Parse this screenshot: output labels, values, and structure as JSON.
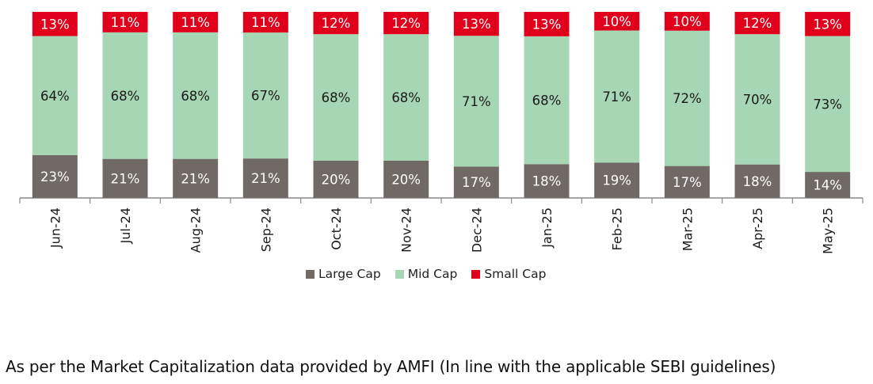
{
  "chart_data": {
    "type": "bar",
    "stacked": true,
    "percent": true,
    "categories": [
      "Jun-24",
      "Jul-24",
      "Aug-24",
      "Sep-24",
      "Oct-24",
      "Nov-24",
      "Dec-24",
      "Jan-25",
      "Feb-25",
      "Mar-25",
      "Apr-25",
      "May-25"
    ],
    "series": [
      {
        "name": "Large Cap",
        "color": "#706965",
        "values": [
          23,
          21,
          21,
          21,
          20,
          20,
          17,
          18,
          19,
          17,
          18,
          14
        ]
      },
      {
        "name": "Mid Cap",
        "color": "#a7d6b4",
        "values": [
          64,
          68,
          68,
          67,
          68,
          68,
          71,
          68,
          71,
          72,
          70,
          73
        ]
      },
      {
        "name": "Small Cap",
        "color": "#e0001b",
        "values": [
          13,
          11,
          11,
          11,
          12,
          12,
          13,
          13,
          10,
          10,
          12,
          13
        ]
      }
    ],
    "labels": [
      [
        "23%",
        "21%",
        "21%",
        "21%",
        "20%",
        "20%",
        "17%",
        "18%",
        "19%",
        "17%",
        "18%",
        "14%"
      ],
      [
        "64%",
        "68%",
        "68%",
        "67%",
        "68%",
        "68%",
        "71%",
        "68%",
        "71%",
        "72%",
        "70%",
        "73%"
      ],
      [
        "13%",
        "11%",
        "11%",
        "11%",
        "12%",
        "12%",
        "13%",
        "13%",
        "10%",
        "10%",
        "12%",
        "13%"
      ]
    ],
    "legend_position": "bottom",
    "grid": false
  },
  "legend": {
    "large": "Large Cap",
    "mid": "Mid Cap",
    "small": "Small Cap",
    "colors": {
      "large": "#706965",
      "mid": "#a7d6b4",
      "small": "#e0001b"
    }
  },
  "footnote": "As per the Market Capitalization data provided by AMFI (In line with the applicable SEBI guidelines)"
}
